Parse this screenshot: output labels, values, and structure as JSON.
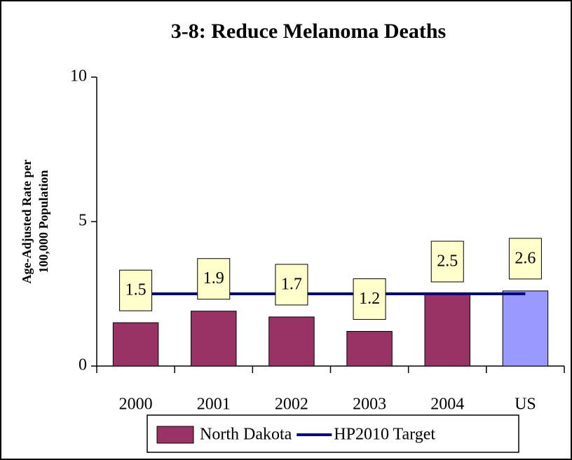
{
  "chart_data": {
    "type": "bar",
    "title": "3-8: Reduce Melanoma Deaths",
    "ylabel": [
      "Age-Adjusted Rate per",
      "100,000 Population"
    ],
    "categories": [
      "2000",
      "2001",
      "2002",
      "2003",
      "2004",
      "US"
    ],
    "series": [
      {
        "name": "North Dakota",
        "type": "bar",
        "color": "#993366",
        "bar_colors": [
          "#993366",
          "#993366",
          "#993366",
          "#993366",
          "#993366",
          "#9999ff"
        ],
        "values": [
          1.5,
          1.9,
          1.7,
          1.2,
          2.5,
          2.6
        ]
      },
      {
        "name": "HP2010 Target",
        "type": "line",
        "color": "#000080",
        "values": [
          2.5,
          2.5,
          2.5,
          2.5,
          2.5,
          2.5
        ]
      }
    ],
    "ylim": [
      0,
      10
    ],
    "yticks": [
      0,
      5,
      10
    ],
    "grid": false,
    "legend": "bottom",
    "value_label_fill": "#ffffcc"
  }
}
